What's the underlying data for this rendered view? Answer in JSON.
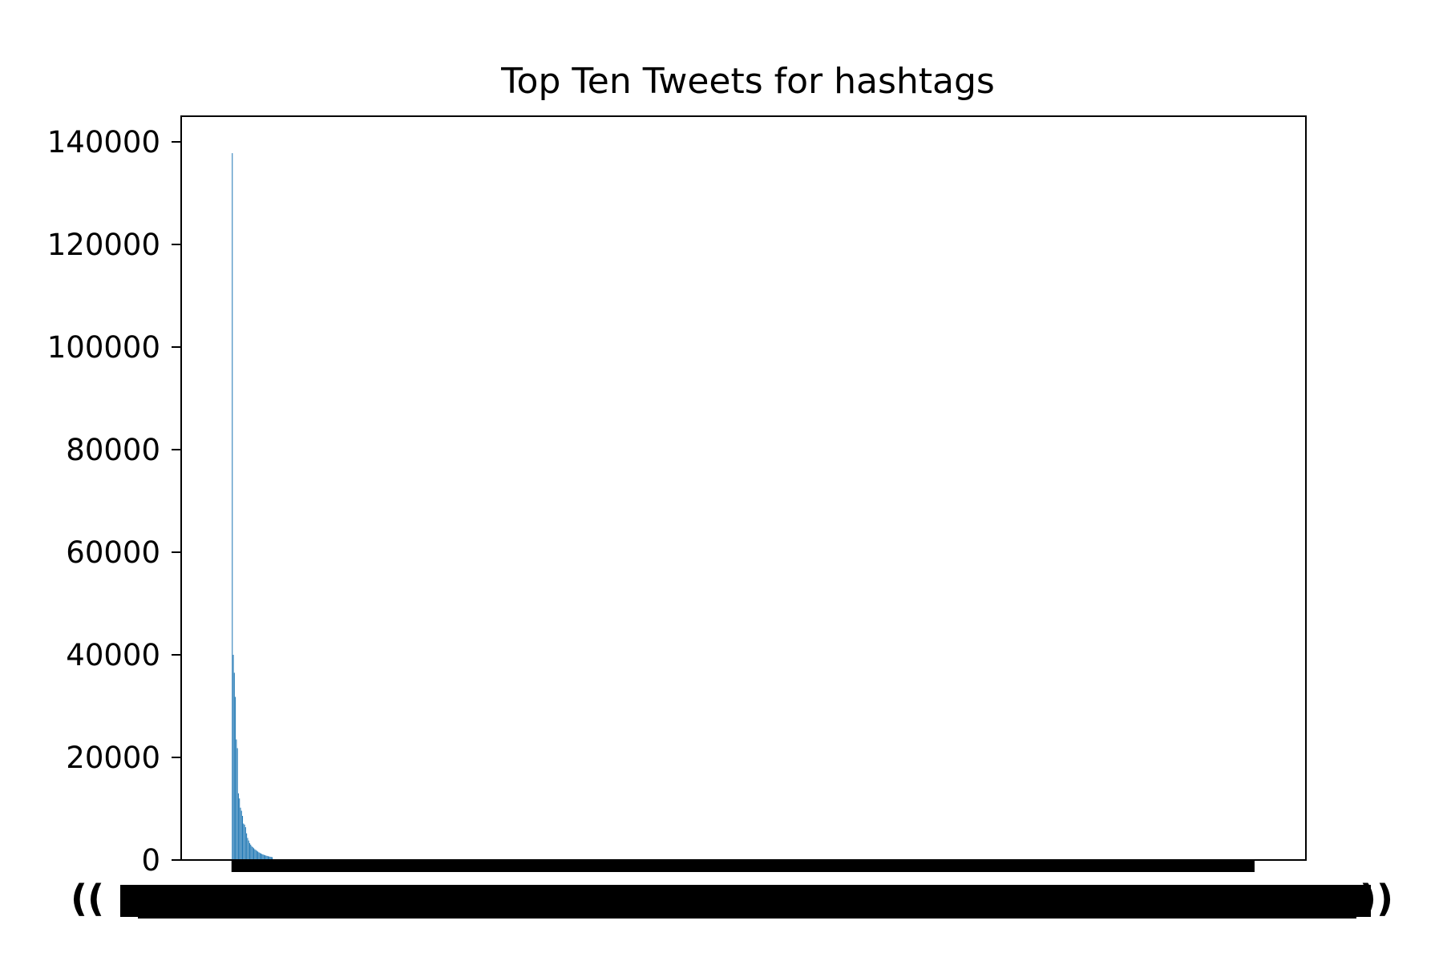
{
  "chart_data": {
    "type": "bar",
    "title": "Top Ten Tweets for hashtags",
    "xlabel": "",
    "ylabel": "",
    "ylim": [
      0,
      145000
    ],
    "yticks": [
      0,
      20000,
      40000,
      60000,
      80000,
      100000,
      120000,
      140000
    ],
    "ytick_labels": [
      "0",
      "20000",
      "40000",
      "60000",
      "80000",
      "100000",
      "120000",
      "140000"
    ],
    "xlim": [
      -50,
      1050
    ],
    "bar_count": 1000,
    "values_head": [
      137800,
      40000,
      36500,
      31800,
      23500,
      21800,
      13000,
      12000,
      10200,
      9600,
      8600,
      7100,
      6900,
      6400,
      5200,
      4300,
      3800,
      3300,
      3000,
      2700,
      2500,
      2300,
      2100,
      1950,
      1800,
      1650,
      1500,
      1380,
      1270,
      1170,
      1080,
      1000,
      930,
      860,
      800,
      740,
      690,
      640,
      600,
      560
    ],
    "tail_value": 150,
    "x_tick_labels": "overlapping category labels (illegible)",
    "grid": false,
    "legend": "none",
    "bar_color": "#1f77b4"
  }
}
